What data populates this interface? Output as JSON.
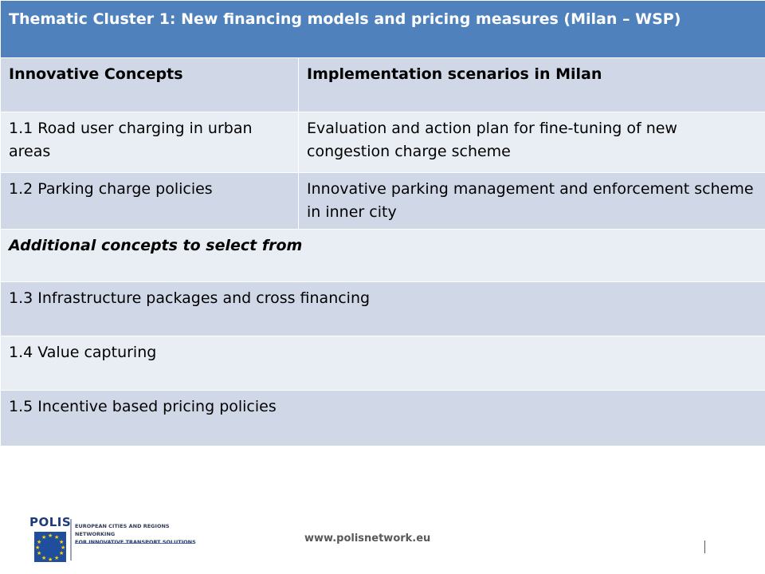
{
  "table": {
    "title": "Thematic Cluster 1: New financing models and pricing measures (Milan – WSP)",
    "header": {
      "col1": "Innovative Concepts",
      "col2": "Implementation scenarios in Milan"
    },
    "rows": [
      {
        "concept": "1.1 Road user charging in urban areas",
        "scenario": "Evaluation and action plan for fine-tuning of new congestion charge scheme"
      },
      {
        "concept": "1.2 Parking charge policies",
        "scenario": "Innovative parking management and enforcement scheme in inner city"
      }
    ],
    "additional_heading": "Additional concepts to select from",
    "additional": [
      "1.3 Infrastructure packages and cross financing",
      "1.4 Value capturing",
      "1.5 Incentive based pricing policies"
    ]
  },
  "footer": {
    "logo_name": "POLIS",
    "tagline_line1": "EUROPEAN CITIES AND REGIONS NETWORKING",
    "tagline_line2": "FOR INNOVATIVE TRANSPORT SOLUTIONS",
    "website": "www.polisnetwork.eu"
  },
  "colors": {
    "title_bg": "#4f81bd",
    "row_dark": "#d0d8e8",
    "row_light": "#e9edf4"
  }
}
